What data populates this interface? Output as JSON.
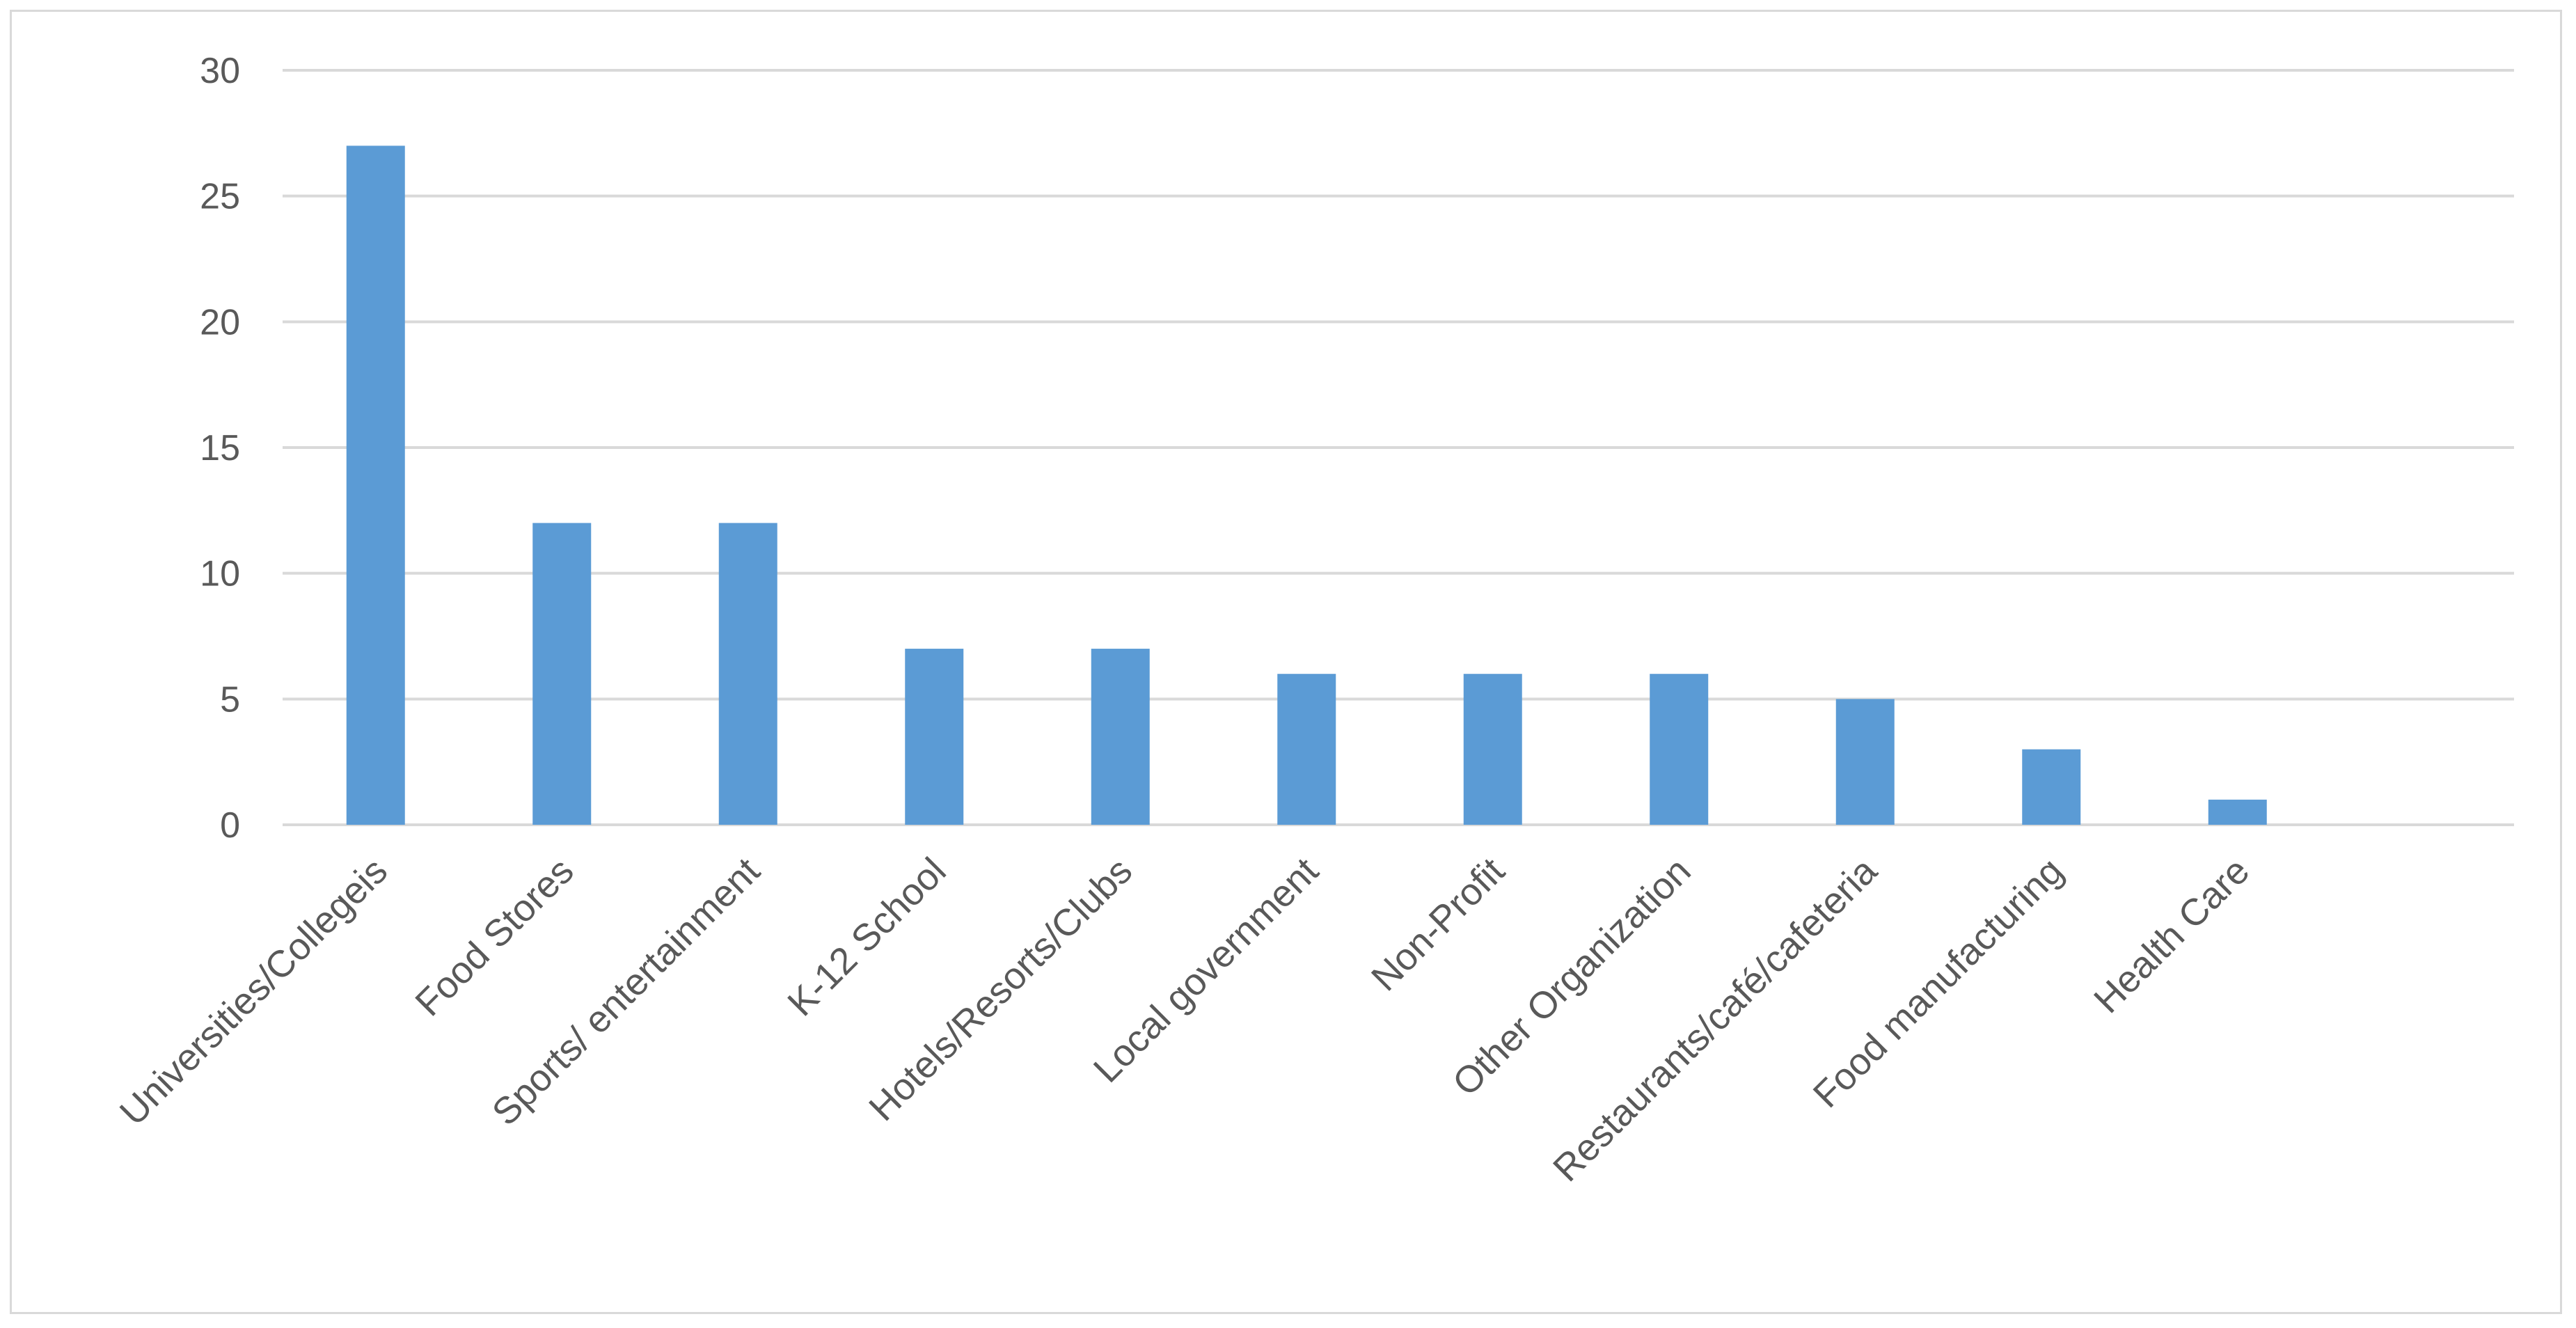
{
  "chart_data": {
    "type": "bar",
    "title": "",
    "xlabel": "",
    "ylabel": "",
    "categories": [
      "Universities/Collegeis",
      "Food Stores",
      "Sports/ entertainment",
      "K-12 School",
      "Hotels/Resorts/Clubs",
      "Local government",
      "Non-Profit",
      "Other Organization",
      "Restaurants/café/cafeteria",
      "Food manufacturing",
      "Health Care"
    ],
    "values": [
      27,
      12,
      12,
      7,
      7,
      6,
      6,
      6,
      5,
      3,
      1
    ],
    "ylim": [
      0,
      30
    ],
    "yticks": [
      0,
      5,
      10,
      15,
      20,
      25,
      30
    ],
    "grid": true,
    "legend": "none",
    "colors": {
      "bar": "#5b9bd5",
      "grid": "#d9d9d9",
      "text": "#595959",
      "frame": "#d9d9d9"
    }
  }
}
